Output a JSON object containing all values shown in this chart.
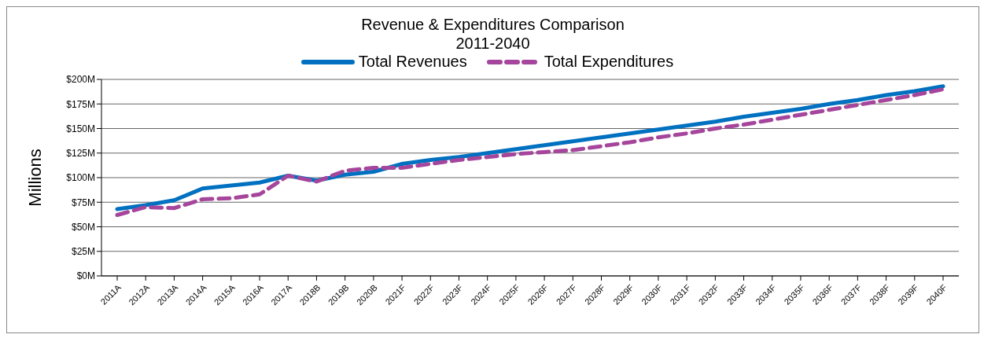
{
  "chart_data": {
    "type": "line",
    "title": "Revenue & Expenditures Comparison\n2011-2040",
    "ylabel": "Millions",
    "categories": [
      "2011A",
      "2012A",
      "2013A",
      "2014A",
      "2015A",
      "2016A",
      "2017A",
      "2018B",
      "2019B",
      "2020B",
      "2021F",
      "2022F",
      "2023F",
      "2024F",
      "2025F",
      "2026F",
      "2027F",
      "2028F",
      "2029F",
      "2030F",
      "2031F",
      "2032F",
      "2033F",
      "2034F",
      "2035F",
      "2036F",
      "2037F",
      "2038F",
      "2039F",
      "2040F"
    ],
    "series": [
      {
        "name": "Total Revenues",
        "color": "#0070c0",
        "line_style": "solid",
        "values": [
          68,
          72,
          77,
          89,
          92,
          95,
          102,
          97,
          103,
          106,
          114,
          118,
          121,
          125,
          129,
          133,
          137,
          141,
          145,
          149,
          153,
          157,
          162,
          166,
          170,
          175,
          179,
          184,
          188,
          193
        ]
      },
      {
        "name": "Total Expenditures",
        "color": "#a5459b",
        "line_style": "dashed",
        "values": [
          62,
          70,
          69,
          78,
          79,
          83,
          102,
          96,
          107,
          110,
          110,
          114,
          118,
          121,
          124,
          126,
          128,
          132,
          136,
          141,
          145,
          150,
          154,
          159,
          164,
          169,
          174,
          179,
          184,
          190
        ]
      }
    ],
    "ylim": [
      0,
      200
    ],
    "yticks": [
      {
        "value": 0,
        "label": "$0M"
      },
      {
        "value": 25,
        "label": "$25M"
      },
      {
        "value": 50,
        "label": "$50M"
      },
      {
        "value": 75,
        "label": "$75M"
      },
      {
        "value": 100,
        "label": "$100M"
      },
      {
        "value": 125,
        "label": "$125M"
      },
      {
        "value": 150,
        "label": "$150M"
      },
      {
        "value": 175,
        "label": "$175M"
      },
      {
        "value": 200,
        "label": "$200M"
      }
    ],
    "grid": "y",
    "legend": "top",
    "marker": "none"
  }
}
